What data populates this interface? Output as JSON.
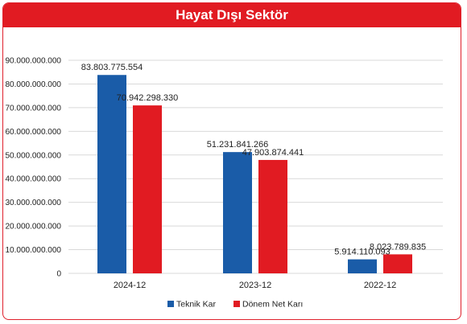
{
  "chart_data": {
    "type": "bar",
    "title": "Hayat Dışı Sektör",
    "categories": [
      "2024-12",
      "2023-12",
      "2022-12"
    ],
    "series": [
      {
        "name": "Teknik Kar",
        "color": "#1a5ca8",
        "values": [
          83803775554,
          51231841266,
          5914110093
        ],
        "labels": [
          "83.803.775.554",
          "51.231.841.266",
          "5.914.110.093"
        ]
      },
      {
        "name": "Dönem Net Karı",
        "color": "#e11b22",
        "values": [
          70942298330,
          47903874441,
          8023789835
        ],
        "labels": [
          "70.942.298.330",
          "47.903.874.441",
          "8.023.789.835"
        ]
      }
    ],
    "ylim": [
      0,
      90000000000
    ],
    "yticks": [
      {
        "value": 0,
        "label": "0"
      },
      {
        "value": 10000000000,
        "label": "10.000.000.000"
      },
      {
        "value": 20000000000,
        "label": "20.000.000.000"
      },
      {
        "value": 30000000000,
        "label": "30.000.000.000"
      },
      {
        "value": 40000000000,
        "label": "40.000.000.000"
      },
      {
        "value": 50000000000,
        "label": "50.000.000.000"
      },
      {
        "value": 60000000000,
        "label": "60.000.000.000"
      },
      {
        "value": 70000000000,
        "label": "70.000.000.000"
      },
      {
        "value": 80000000000,
        "label": "80.000.000.000"
      },
      {
        "value": 90000000000,
        "label": "90.000.000.000"
      }
    ],
    "grid": true,
    "legend": "bottom-center"
  }
}
